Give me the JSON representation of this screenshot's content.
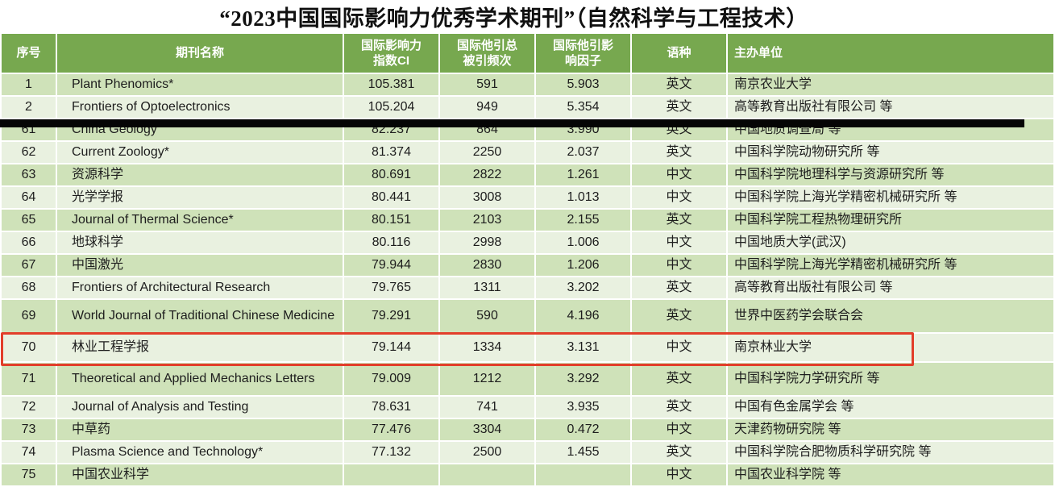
{
  "title": "“2023中国国际影响力优秀学术期刊”（自然科学与工程技术）",
  "colors": {
    "header_green": "#77a84f",
    "row_dark_green": "#cfe2b9",
    "row_light_green": "#e9f1e0",
    "highlight_red": "#e23e2a",
    "redaction_black": "#050505"
  },
  "table": {
    "columns": [
      {
        "key": "no",
        "label": "序号"
      },
      {
        "key": "journal",
        "label": "期刊名称"
      },
      {
        "key": "ci",
        "label": "国际影响力\n指数CI"
      },
      {
        "key": "cites",
        "label": "国际他引总\n被引频次"
      },
      {
        "key": "impact",
        "label": "国际他引影\n响因子"
      },
      {
        "key": "lang",
        "label": "语种"
      },
      {
        "key": "org",
        "label": "主办单位"
      }
    ],
    "rows": [
      {
        "no": "1",
        "journal": "Plant Phenomics*",
        "ci": "105.381",
        "cites": "591",
        "impact": "5.903",
        "lang": "英文",
        "org": "南京农业大学"
      },
      {
        "no": "2",
        "journal": "Frontiers of Optoelectronics",
        "ci": "105.204",
        "cites": "949",
        "impact": "5.354",
        "lang": "英文",
        "org": "高等教育出版社有限公司 等"
      },
      {
        "no": "61",
        "journal": "China Geology",
        "ci": "82.237",
        "cites": "864",
        "impact": "3.990",
        "lang": "英文",
        "org": "中国地质调查局 等"
      },
      {
        "no": "62",
        "journal": "Current Zoology*",
        "ci": "81.374",
        "cites": "2250",
        "impact": "2.037",
        "lang": "英文",
        "org": "中国科学院动物研究所 等"
      },
      {
        "no": "63",
        "journal": "资源科学",
        "ci": "80.691",
        "cites": "2822",
        "impact": "1.261",
        "lang": "中文",
        "org": "中国科学院地理科学与资源研究所 等"
      },
      {
        "no": "64",
        "journal": "光学学报",
        "ci": "80.441",
        "cites": "3008",
        "impact": "1.013",
        "lang": "中文",
        "org": "中国科学院上海光学精密机械研究所 等"
      },
      {
        "no": "65",
        "journal": "Journal of Thermal Science*",
        "ci": "80.151",
        "cites": "2103",
        "impact": "2.155",
        "lang": "英文",
        "org": "中国科学院工程热物理研究所"
      },
      {
        "no": "66",
        "journal": "地球科学",
        "ci": "80.116",
        "cites": "2998",
        "impact": "1.006",
        "lang": "中文",
        "org": "中国地质大学(武汉)"
      },
      {
        "no": "67",
        "journal": "中国激光",
        "ci": "79.944",
        "cites": "2830",
        "impact": "1.206",
        "lang": "中文",
        "org": "中国科学院上海光学精密机械研究所 等"
      },
      {
        "no": "68",
        "journal": "Frontiers of Architectural Research",
        "ci": "79.765",
        "cites": "1311",
        "impact": "3.202",
        "lang": "英文",
        "org": "高等教育出版社有限公司 等"
      },
      {
        "no": "69",
        "journal": "World Journal of Traditional Chinese Medicine",
        "ci": "79.291",
        "cites": "590",
        "impact": "4.196",
        "lang": "英文",
        "org": "世界中医药学会联合会"
      },
      {
        "no": "70",
        "journal": "林业工程学报",
        "ci": "79.144",
        "cites": "1334",
        "impact": "3.131",
        "lang": "中文",
        "org": "南京林业大学",
        "highlighted": true
      },
      {
        "no": "71",
        "journal": "Theoretical and Applied Mechanics Letters",
        "ci": "79.009",
        "cites": "1212",
        "impact": "3.292",
        "lang": "英文",
        "org": "中国科学院力学研究所 等"
      },
      {
        "no": "72",
        "journal": "Journal of Analysis and Testing",
        "ci": "78.631",
        "cites": "741",
        "impact": "3.935",
        "lang": "英文",
        "org": "中国有色金属学会 等"
      },
      {
        "no": "73",
        "journal": "中草药",
        "ci": "77.476",
        "cites": "3304",
        "impact": "0.472",
        "lang": "中文",
        "org": "天津药物研究院 等"
      },
      {
        "no": "74",
        "journal": "Plasma Science and Technology*",
        "ci": "77.132",
        "cites": "2500",
        "impact": "1.455",
        "lang": "英文",
        "org": "中国科学院合肥物质科学研究院 等"
      },
      {
        "no": "75",
        "journal": "中国农业科学",
        "ci": "",
        "cites": "",
        "impact": "",
        "lang": "中文",
        "org": "中国农业科学院 等",
        "clipped": true
      }
    ]
  },
  "overlays": {
    "redaction_bar_between": "row 2 and row 61",
    "highlight_box_row": "70"
  }
}
